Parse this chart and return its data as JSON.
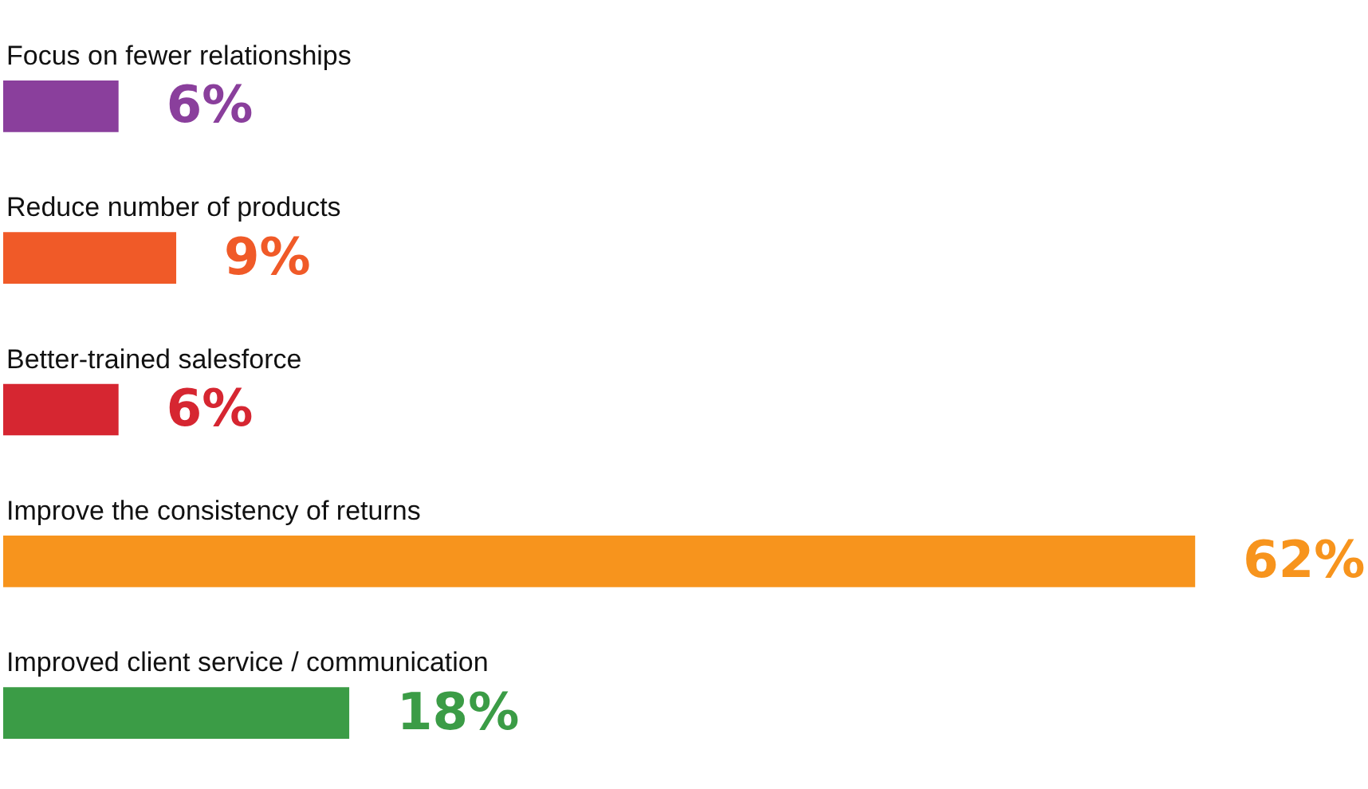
{
  "chart_data": {
    "type": "bar",
    "orientation": "horizontal",
    "categories": [
      "Focus on fewer relationships",
      "Reduce number of products",
      "Better-trained salesforce",
      "Improve the consistency of returns",
      "Improved client service / communication"
    ],
    "values": [
      6,
      9,
      6,
      62,
      18
    ],
    "colors": [
      "#8a3f9c",
      "#f05a28",
      "#d62631",
      "#f7941d",
      "#3b9c46"
    ],
    "value_labels": [
      "6%",
      "9%",
      "6%",
      "62%",
      "18%"
    ],
    "tick_labels": false
  }
}
